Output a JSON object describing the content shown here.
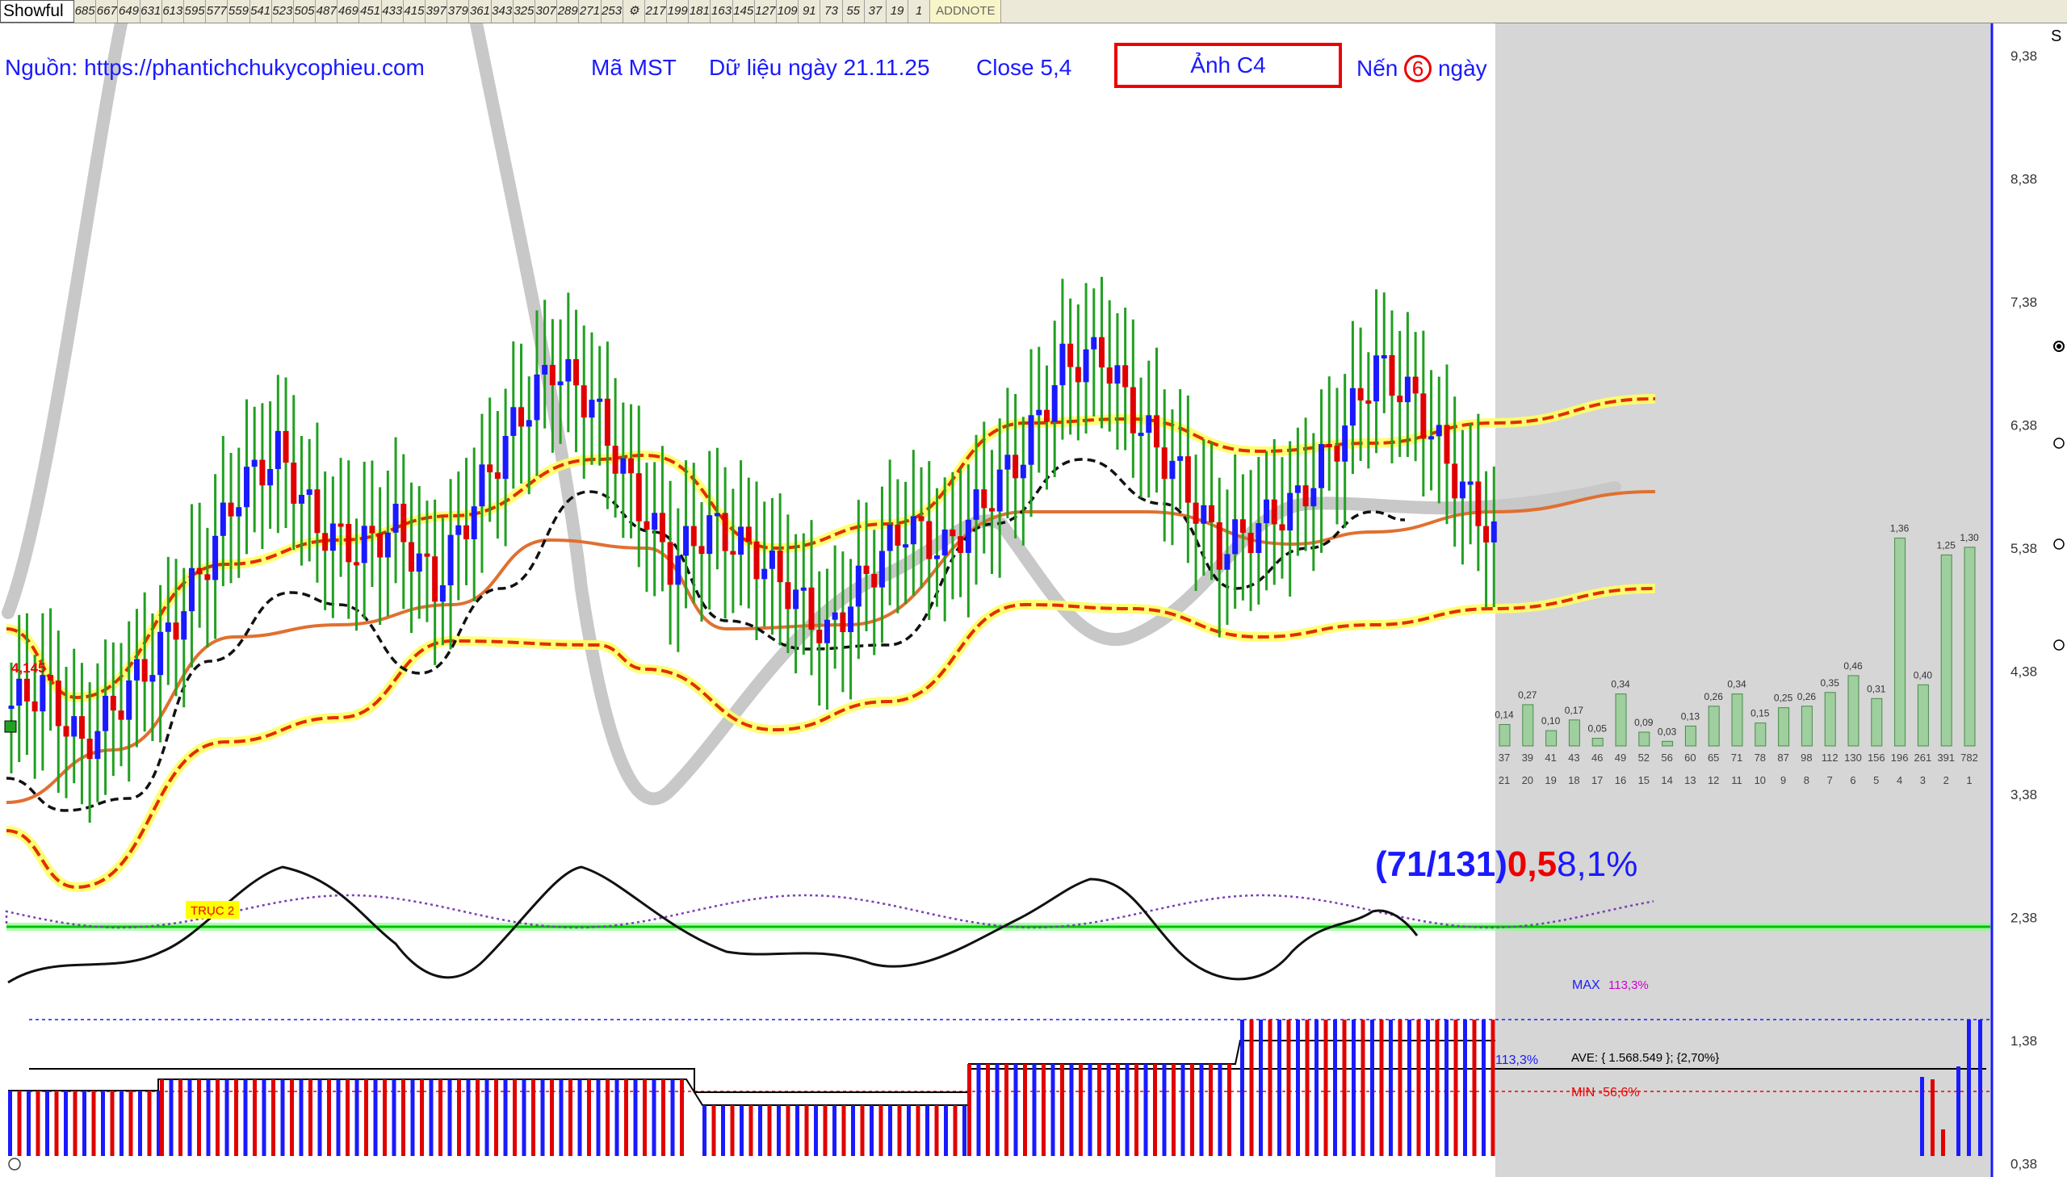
{
  "toolbar": {
    "brand": "Showful",
    "cells": [
      "685",
      "667",
      "649",
      "631",
      "613",
      "595",
      "577",
      "559",
      "541",
      "523",
      "505",
      "487",
      "469",
      "451",
      "433",
      "415",
      "397",
      "379",
      "361",
      "343",
      "325",
      "307",
      "289",
      "271",
      "253",
      "",
      "217",
      "199",
      "181",
      "163",
      "145",
      "127",
      "109",
      "91",
      "73",
      "55",
      "37",
      "19",
      "1"
    ],
    "addnote": "ADDNOTE"
  },
  "header": {
    "source": "Nguồn: https://phantichchukycophieu.com",
    "symbol": "Mã MST",
    "data_date": "Dữ liệu ngày 21.11.25",
    "close": "Close 5,4",
    "image_label": "Ảnh C4",
    "candle_prefix": "Nến",
    "candle_count": "6",
    "candle_suffix": "ngày"
  },
  "chart": {
    "price_marker": "4,145",
    "axis_label_truc2": "TRỤC 2",
    "ratio": {
      "part1": "(71/131)",
      "part2": "0,5",
      "part3": "8,1%"
    },
    "y_axis_ticks": [
      "9,38",
      "8,38",
      "7,38",
      "6,38",
      "5,38",
      "4,38",
      "3,38",
      "2,38",
      "1,38",
      "0,38"
    ],
    "max_label": "MAX",
    "max_value": "113,3%",
    "ave_label": "AVE: { 1.568.549 }; {2,70%}",
    "min_label": "MIN -56,6%",
    "level_label": "113,3%",
    "side_label": "S",
    "colors": {
      "up": "#1a1aff",
      "down": "#e00000",
      "wick": "#22a022",
      "band": "#e03000",
      "band_glow": "#ffff00",
      "trend": "#e07030",
      "grey_panel": "#d6d6d6",
      "hist_bar": "#9fcf9f"
    }
  },
  "chart_data": {
    "type": "bar",
    "categories": [
      "37",
      "39",
      "41",
      "43",
      "46",
      "49",
      "52",
      "56",
      "60",
      "65",
      "71",
      "78",
      "87",
      "98",
      "112",
      "130",
      "156",
      "196",
      "261",
      "391",
      "782"
    ],
    "bottom_labels": [
      "21",
      "20",
      "19",
      "18",
      "17",
      "16",
      "15",
      "14",
      "13",
      "12",
      "11",
      "10",
      "9",
      "8",
      "7",
      "6",
      "5",
      "4",
      "3",
      "2",
      "1"
    ],
    "values": [
      0.14,
      0.27,
      0.1,
      0.17,
      0.05,
      0.34,
      0.09,
      0.03,
      0.13,
      0.26,
      0.34,
      0.15,
      0.25,
      0.26,
      0.35,
      0.46,
      0.31,
      1.36,
      0.4,
      1.25,
      1.3
    ],
    "value_labels": [
      "0,14",
      "0,27",
      "0,10",
      "0,17",
      "0,05",
      "0,34",
      "0,09",
      "0,03",
      "0,13",
      "0,26",
      "0,34",
      "0,15",
      "0,25",
      "0,26",
      "0,35",
      "0,46",
      "0,31",
      "1,36",
      "0,40",
      "1,25",
      "1,30"
    ]
  }
}
